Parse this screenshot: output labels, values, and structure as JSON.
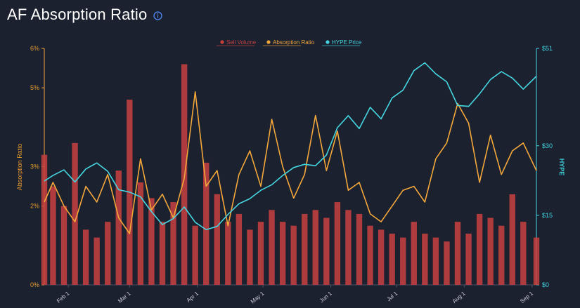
{
  "header": {
    "title": "AF Absorption Ratio",
    "info_icon": "info-circle-icon"
  },
  "colors": {
    "background": "#1c2130",
    "sell_volume": "#c8403f",
    "absorption_ratio": "#f2a73b",
    "hype_price": "#45d6df"
  },
  "chart_data": {
    "type": "line",
    "legend": [
      "Sell Volume",
      "Absorption Ratio",
      "HYPE Price"
    ],
    "legend_position": "top-center",
    "ylabel_left": "Absorption Ratio",
    "ylabel_right": "HYPE",
    "y_left_ticks": [
      "6%",
      "5%",
      "3%",
      "2%",
      "0%"
    ],
    "y_right_ticks": [
      "$51",
      "$30",
      "$15",
      "$0"
    ],
    "x_ticks": [
      "Feb 1",
      "Mar 1",
      "Apr 1",
      "May 1",
      "Jun 1",
      "Jul 1",
      "Aug 1",
      "Sep 1"
    ],
    "x_range": [
      "2025-01-21",
      "2025-09-03"
    ],
    "ylim_right": [
      0,
      51
    ],
    "series": [
      {
        "name": "HYPE Price",
        "axis": "right",
        "x": [
          "2025-01-21",
          "2025-01-25",
          "2025-01-30",
          "2025-02-04",
          "2025-02-09",
          "2025-02-14",
          "2025-02-19",
          "2025-02-24",
          "2025-03-01",
          "2025-03-06",
          "2025-03-11",
          "2025-03-16",
          "2025-03-21",
          "2025-03-26",
          "2025-03-31",
          "2025-04-05",
          "2025-04-10",
          "2025-04-15",
          "2025-04-20",
          "2025-04-25",
          "2025-04-30",
          "2025-05-05",
          "2025-05-10",
          "2025-05-15",
          "2025-05-20",
          "2025-05-25",
          "2025-05-30",
          "2025-06-04",
          "2025-06-09",
          "2025-06-14",
          "2025-06-19",
          "2025-06-24",
          "2025-06-29",
          "2025-07-04",
          "2025-07-09",
          "2025-07-14",
          "2025-07-19",
          "2025-07-24",
          "2025-07-29",
          "2025-08-03",
          "2025-08-08",
          "2025-08-13",
          "2025-08-18",
          "2025-08-23",
          "2025-08-28",
          "2025-09-03"
        ],
        "values": [
          22.4,
          23.6,
          24.8,
          22.2,
          25.0,
          26.3,
          24.5,
          20.5,
          20.0,
          19.0,
          15.8,
          13.0,
          14.3,
          16.8,
          13.5,
          11.9,
          12.6,
          15.2,
          17.5,
          18.6,
          20.4,
          21.6,
          23.6,
          25.3,
          26.0,
          25.7,
          28.0,
          33.9,
          36.5,
          33.7,
          38.3,
          35.8,
          40.3,
          42.0,
          46.2,
          47.9,
          45.5,
          43.8,
          38.7,
          38.5,
          41.2,
          44.3,
          46.0,
          44.6,
          42.2,
          45.0
        ]
      },
      {
        "name": "Absorption Ratio",
        "axis": "left",
        "unit": "%",
        "x": [
          "2025-01-21",
          "2025-01-25",
          "2025-01-30",
          "2025-02-04",
          "2025-02-09",
          "2025-02-14",
          "2025-02-19",
          "2025-02-24",
          "2025-03-01",
          "2025-03-06",
          "2025-03-11",
          "2025-03-16",
          "2025-03-21",
          "2025-03-26",
          "2025-03-31",
          "2025-04-05",
          "2025-04-10",
          "2025-04-15",
          "2025-04-20",
          "2025-04-25",
          "2025-04-30",
          "2025-05-05",
          "2025-05-10",
          "2025-05-15",
          "2025-05-20",
          "2025-05-25",
          "2025-05-30",
          "2025-06-04",
          "2025-06-09",
          "2025-06-14",
          "2025-06-19",
          "2025-06-24",
          "2025-06-29",
          "2025-07-04",
          "2025-07-09",
          "2025-07-14",
          "2025-07-19",
          "2025-07-24",
          "2025-07-29",
          "2025-08-03",
          "2025-08-08",
          "2025-08-13",
          "2025-08-18",
          "2025-08-23",
          "2025-08-28",
          "2025-09-03"
        ],
        "values": [
          2.1,
          2.6,
          2.0,
          1.6,
          2.5,
          2.1,
          2.8,
          1.7,
          1.3,
          3.2,
          1.9,
          2.3,
          1.7,
          2.7,
          4.9,
          2.5,
          2.9,
          1.5,
          2.8,
          3.4,
          2.5,
          4.2,
          3.0,
          2.2,
          2.8,
          4.3,
          2.9,
          3.9,
          2.4,
          2.6,
          1.8,
          1.6,
          2.0,
          2.4,
          2.5,
          2.1,
          3.2,
          3.6,
          4.6,
          4.1,
          2.6,
          3.8,
          2.8,
          3.4,
          3.6,
          2.9
        ]
      },
      {
        "name": "Sell Volume",
        "type": "bar",
        "axis": "left",
        "x": [
          "2025-01-21",
          "2025-01-25",
          "2025-01-30",
          "2025-02-04",
          "2025-02-09",
          "2025-02-14",
          "2025-02-19",
          "2025-02-24",
          "2025-03-01",
          "2025-03-06",
          "2025-03-11",
          "2025-03-16",
          "2025-03-21",
          "2025-03-26",
          "2025-03-31",
          "2025-04-05",
          "2025-04-10",
          "2025-04-15",
          "2025-04-20",
          "2025-04-25",
          "2025-04-30",
          "2025-05-05",
          "2025-05-10",
          "2025-05-15",
          "2025-05-20",
          "2025-05-25",
          "2025-05-30",
          "2025-06-04",
          "2025-06-09",
          "2025-06-14",
          "2025-06-19",
          "2025-06-24",
          "2025-06-29",
          "2025-07-04",
          "2025-07-09",
          "2025-07-14",
          "2025-07-19",
          "2025-07-24",
          "2025-07-29",
          "2025-08-03",
          "2025-08-08",
          "2025-08-13",
          "2025-08-18",
          "2025-08-23",
          "2025-08-28",
          "2025-09-03"
        ],
        "values": [
          3.3,
          2.5,
          2.0,
          3.6,
          1.4,
          1.2,
          1.6,
          2.9,
          4.7,
          2.6,
          2.2,
          1.6,
          2.1,
          5.6,
          1.5,
          3.1,
          2.3,
          1.6,
          1.8,
          1.4,
          1.6,
          1.9,
          1.6,
          1.5,
          1.8,
          1.9,
          1.7,
          2.1,
          1.9,
          1.8,
          1.5,
          1.4,
          1.3,
          1.2,
          1.6,
          1.3,
          1.2,
          1.1,
          1.6,
          1.3,
          1.8,
          1.7,
          1.5,
          2.3,
          1.6,
          1.2
        ]
      }
    ]
  }
}
